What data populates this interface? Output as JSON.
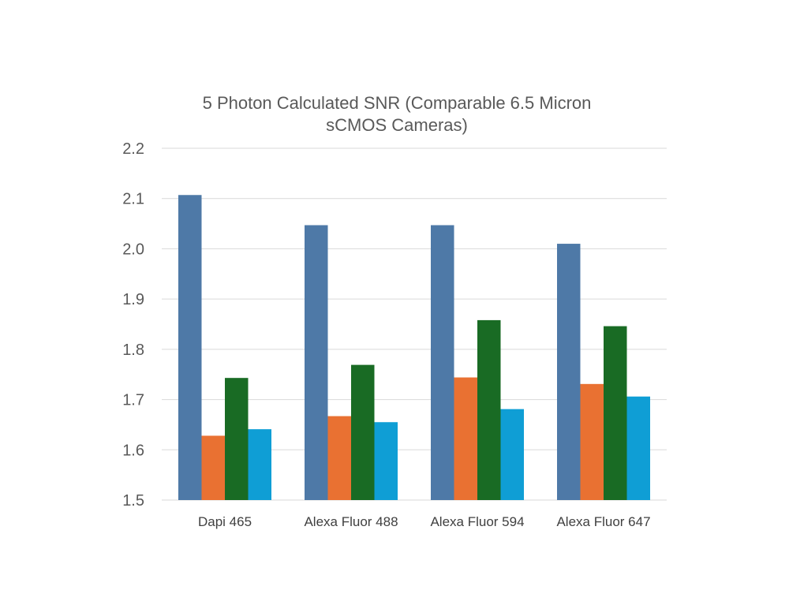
{
  "chart_data": {
    "type": "bar",
    "title": "5 Photon Calculated SNR (Comparable 6.5 Micron sCMOS Cameras)",
    "title_lines": [
      "5 Photon Calculated SNR (Comparable 6.5 Micron",
      "sCMOS Cameras)"
    ],
    "categories": [
      "Dapi 465",
      "Alexa Fluor 488",
      "Alexa Fluor 594",
      "Alexa Fluor 647"
    ],
    "series": [
      {
        "color": "#4e79a7",
        "values": [
          2.107,
          2.047,
          2.047,
          2.01
        ]
      },
      {
        "color": "#e97132",
        "values": [
          1.628,
          1.667,
          1.744,
          1.731
        ]
      },
      {
        "color": "#196b24",
        "values": [
          1.743,
          1.769,
          1.858,
          1.846
        ]
      },
      {
        "color": "#0f9ed5",
        "values": [
          1.641,
          1.655,
          1.681,
          1.706
        ]
      }
    ],
    "ylim": [
      1.5,
      2.2
    ],
    "yticks": [
      "1.5",
      "1.6",
      "1.7",
      "1.8",
      "1.9",
      "2.0",
      "2.1",
      "2.2"
    ],
    "grid": true,
    "legend": "none"
  }
}
